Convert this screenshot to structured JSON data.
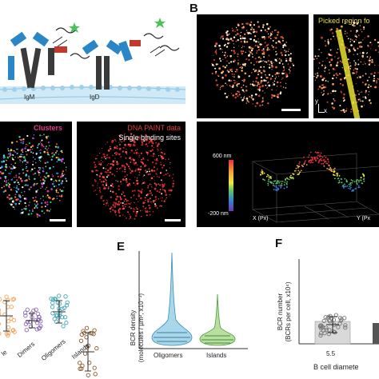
{
  "panels": {
    "a": {
      "igm_label": "IgM",
      "igd_label": "IgD"
    },
    "b": {
      "letter": "B",
      "picked_region_label": "Picked region fo",
      "axis_y": "y",
      "axis_x": "x"
    },
    "c": {
      "clusters_label": "Clusters",
      "dna_paint_label": "DNA PAINT data",
      "single_sites_label": "Single binding sites"
    },
    "b3d": {
      "colorbar_top": "600 nm",
      "colorbar_bottom": "-200 nm",
      "x_axis": "X (Px)",
      "y_axis": "Y (Px"
    },
    "d": {
      "categories": [
        "le",
        "Dimers",
        "Oligomers",
        "Islands"
      ]
    },
    "e": {
      "letter": "E",
      "ylabel_line1": "BCR density",
      "ylabel_line2": "(molecules / µm², x10⁻³)",
      "categories": [
        "Oligomers",
        "Islands"
      ]
    },
    "f": {
      "letter": "F",
      "ylabel_line1": "BCR number",
      "ylabel_line2": "(BCRs per cell, x10⁴)",
      "tick_label": "5.5",
      "xlabel": "B cell diamete"
    }
  },
  "colors": {
    "membrane": "#a9d7ef",
    "heavy_chain": "#3a3a3a",
    "light_chain": "#2b86c5",
    "antigen": "#4cc35a",
    "blue_violin": "#a8d6ea",
    "green_violin": "#b6dfa0",
    "dots_orange": "#f3a55b",
    "dots_purple": "#8e6bb3",
    "dots_teal": "#43a7b5",
    "dots_brown": "#8a5a2b",
    "yellow": "#e8e030"
  },
  "chart_data": [
    {
      "type": "scatter",
      "panel": "D",
      "categories": [
        "le",
        "Dimers",
        "Oligomers",
        "Islands"
      ],
      "note": "axis values not printed"
    },
    {
      "type": "violin",
      "panel": "E",
      "categories": [
        "Oligomers",
        "Islands"
      ],
      "ylabel": "BCR density (molecules / µm², x10⁻³)"
    },
    {
      "type": "bar",
      "panel": "F",
      "categories": [
        "5.5"
      ],
      "ylabel": "BCR number (BCRs per cell, x10⁴)",
      "xlabel": "B cell diamete"
    }
  ]
}
